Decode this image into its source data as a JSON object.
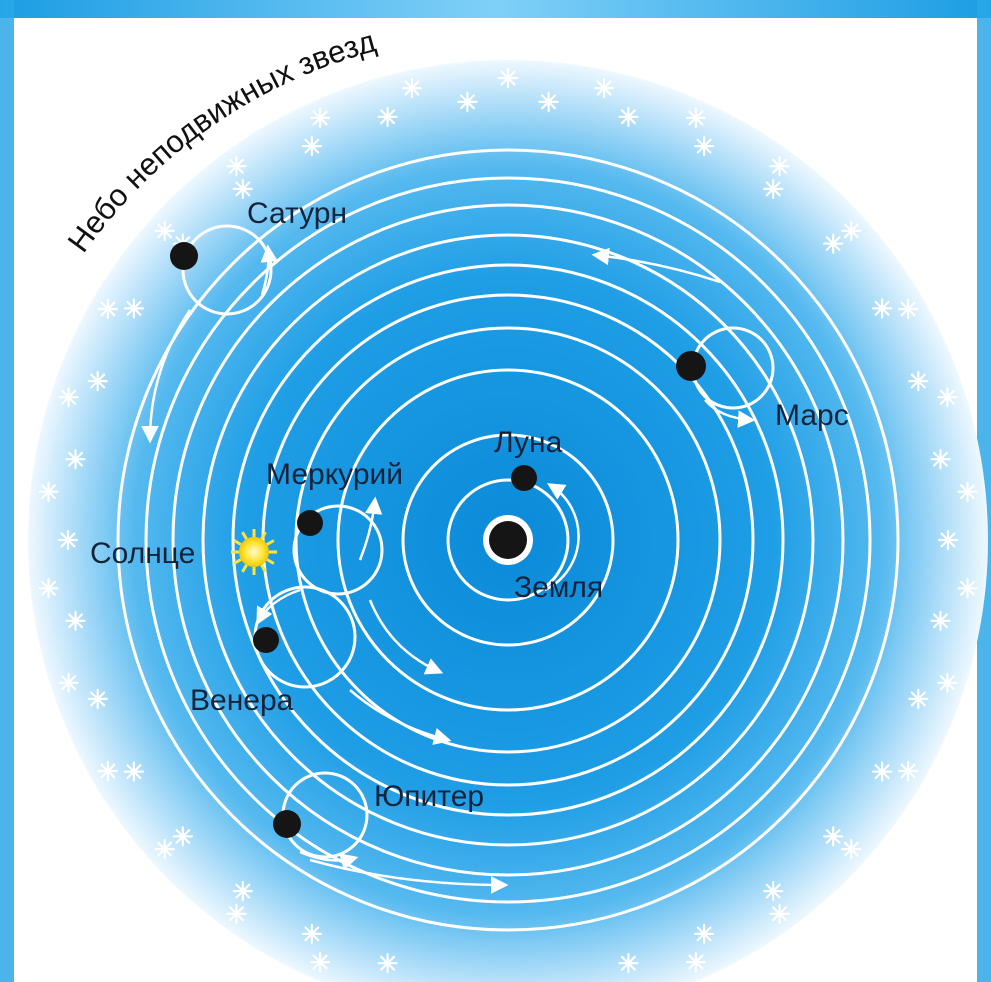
{
  "sky_title": "Небо неподвижных звезд",
  "bodies": {
    "earth": "Земля",
    "moon": "Луна",
    "mercury": "Меркурий",
    "venus": "Венера",
    "sun": "Солнце",
    "mars": "Марс",
    "jupiter": "Юпитер",
    "saturn": "Сатурн"
  },
  "colors": {
    "sky_inner": "#0d8fdc",
    "sky_mid": "#3fb0ee",
    "sky_outer": "#d6eefc",
    "orbit": "#ffffff",
    "planet": "#151515",
    "sun": "#ffe53a",
    "frame": "#2aa7e8"
  }
}
